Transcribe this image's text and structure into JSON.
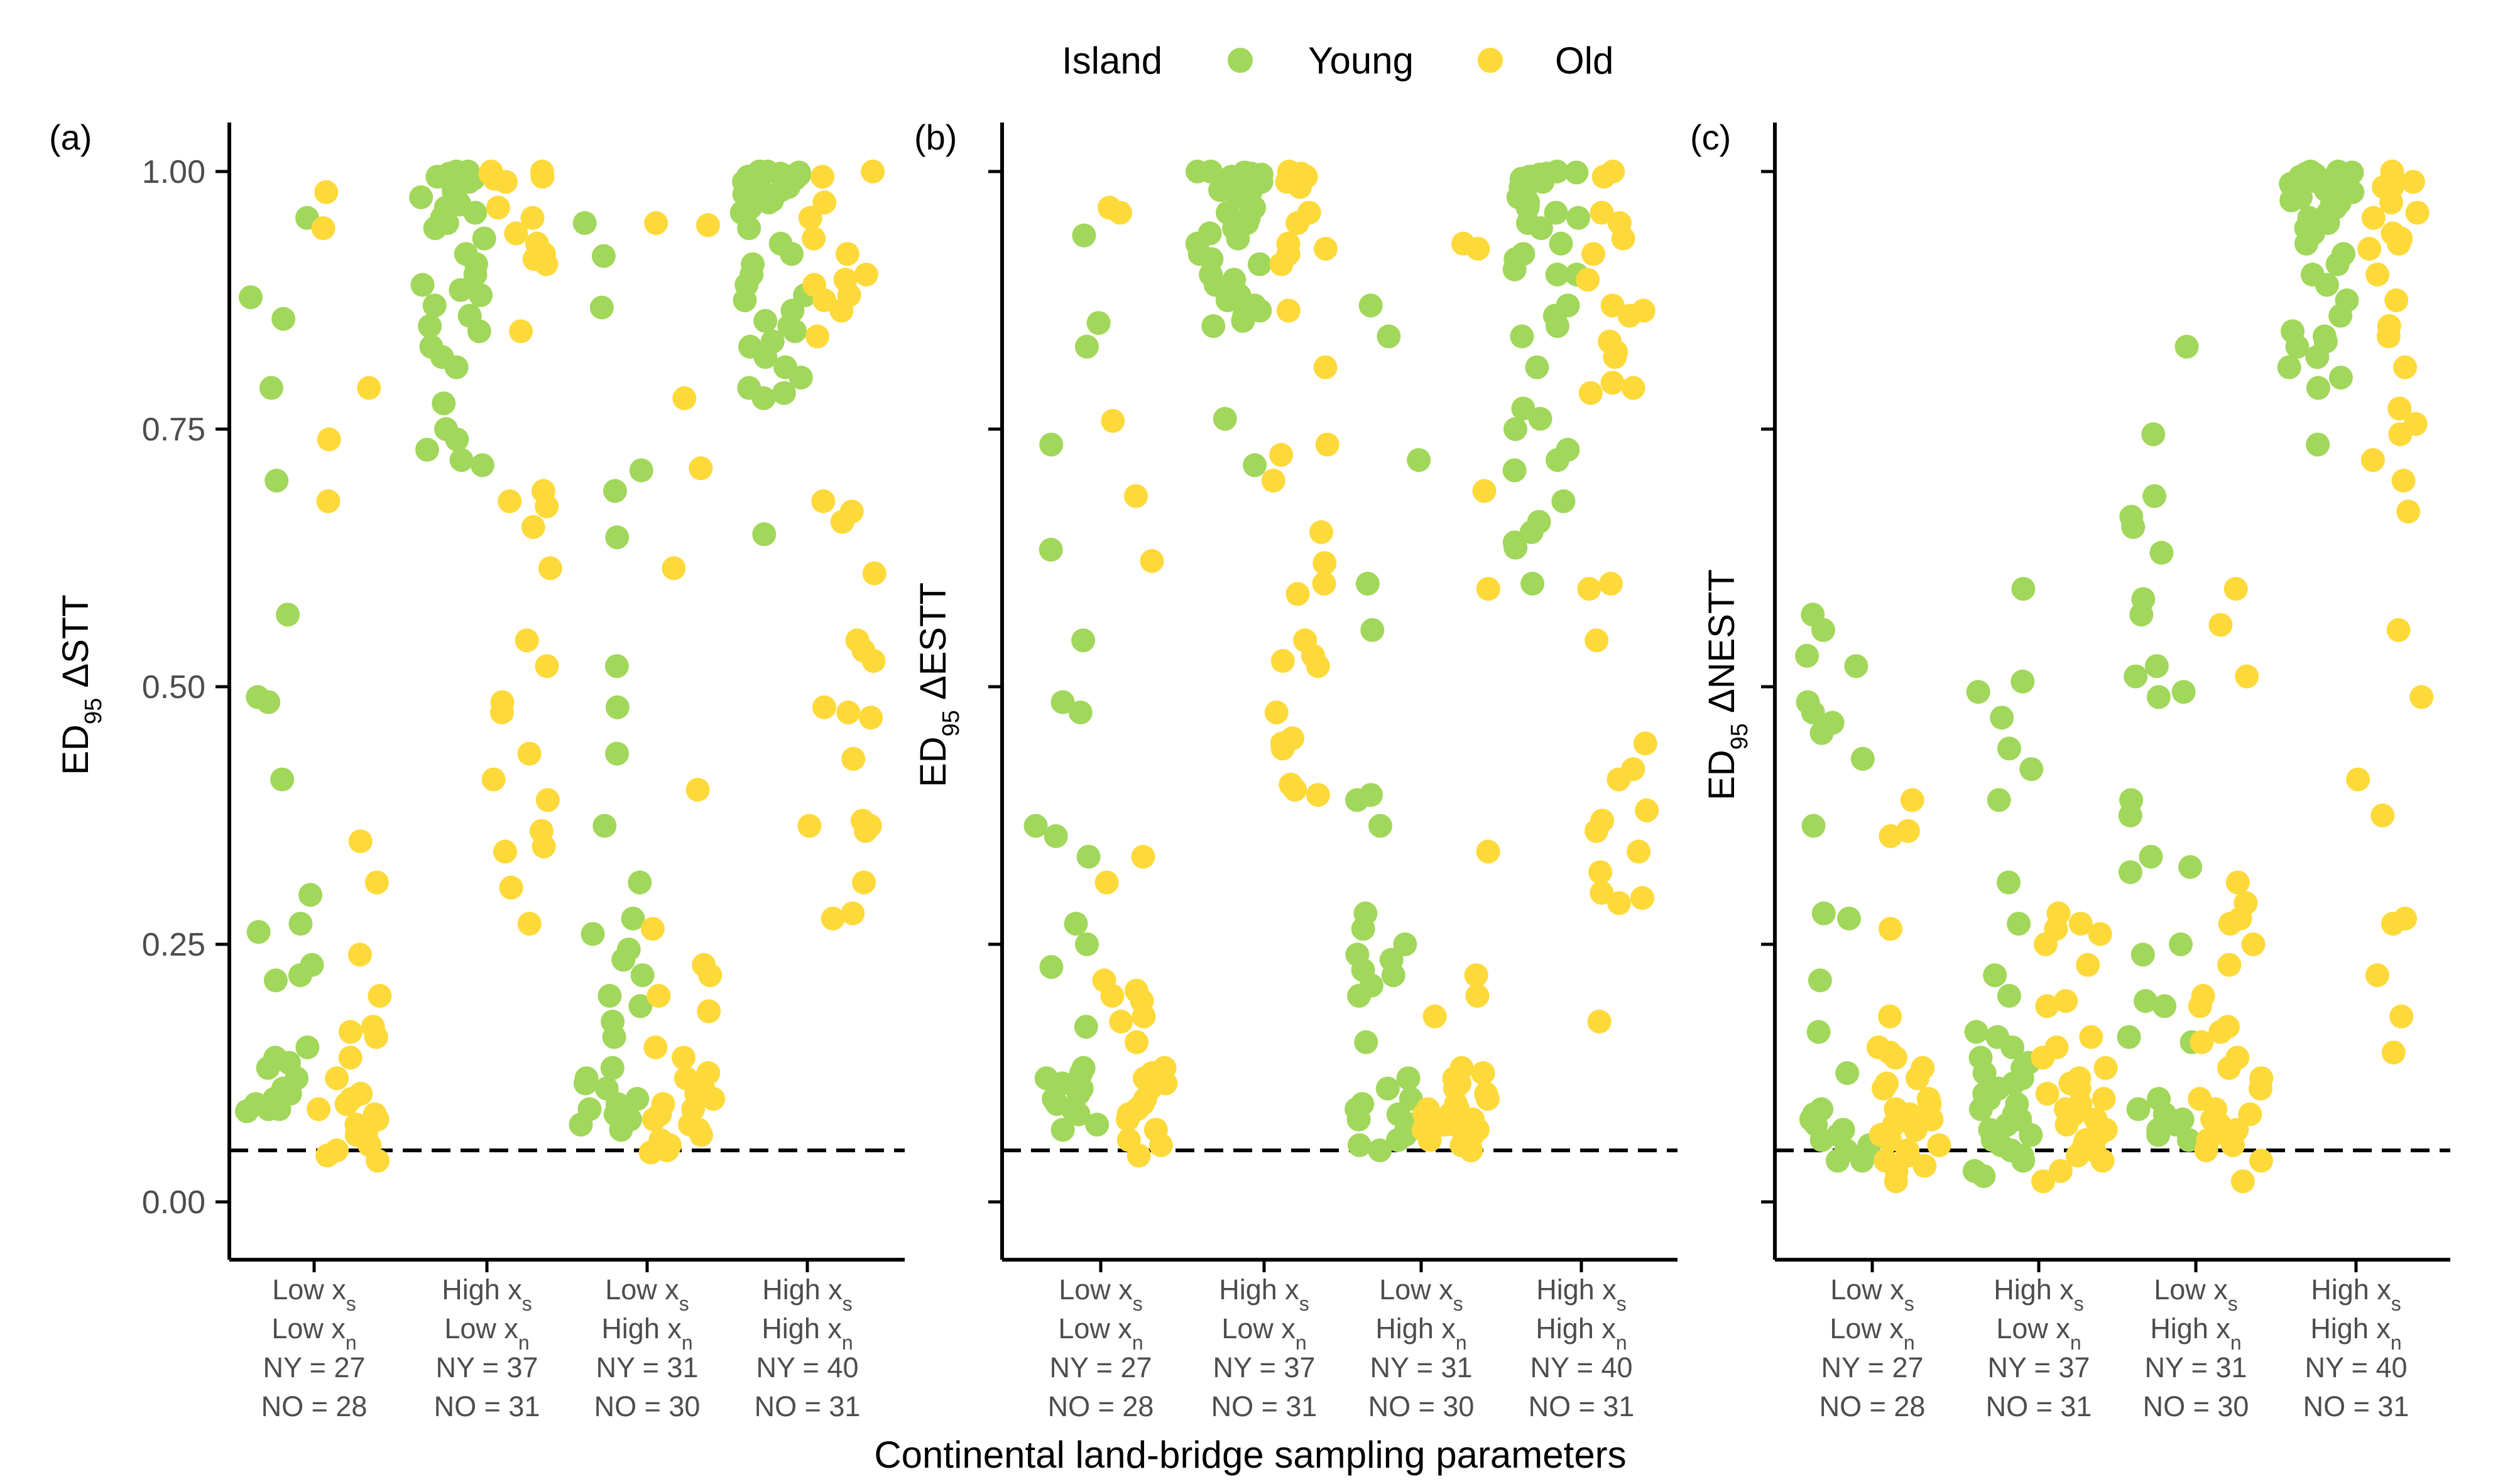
{
  "legend": {
    "title": "Island",
    "items": [
      {
        "label": "Young",
        "color": "#a1d75a"
      },
      {
        "label": "Old",
        "color": "#fed93a"
      }
    ]
  },
  "x_axis_title": "Continental land-bridge sampling parameters",
  "chart_data": [
    {
      "type": "scatter",
      "panel_label": "(a)",
      "ylabel": "ED95 ΔSTT",
      "ylim": [
        -0.05,
        1.05
      ],
      "yticks": [
        0.0,
        0.25,
        0.5,
        0.75,
        1.0
      ],
      "ytick_labels": [
        "0.00",
        "0.25",
        "0.50",
        "0.75",
        "1.00"
      ],
      "reference_line": 0.05,
      "categories": [
        {
          "lines": [
            "Low xs",
            "Low xn",
            "NY = 27",
            "NO = 28"
          ],
          "young": [
            0.955,
            0.878,
            0.857,
            0.79,
            0.7,
            0.57,
            0.49,
            0.485,
            0.41,
            0.298,
            0.27,
            0.262,
            0.23,
            0.22,
            0.215,
            0.15,
            0.14,
            0.135,
            0.13,
            0.12,
            0.11,
            0.105,
            0.1,
            0.095,
            0.09,
            0.09,
            0.088
          ],
          "old": [
            0.98,
            0.945,
            0.79,
            0.74,
            0.68,
            0.35,
            0.31,
            0.24,
            0.2,
            0.17,
            0.165,
            0.16,
            0.14,
            0.12,
            0.105,
            0.1,
            0.095,
            0.09,
            0.085,
            0.08,
            0.075,
            0.07,
            0.065,
            0.06,
            0.055,
            0.05,
            0.045,
            0.04
          ]
        },
        {
          "lines": [
            "High xs",
            "Low xn",
            "NY = 37",
            "NO = 31"
          ],
          "young": [
            1.0,
            1.0,
            0.998,
            0.995,
            0.993,
            0.99,
            0.988,
            0.985,
            0.98,
            0.975,
            0.97,
            0.968,
            0.965,
            0.96,
            0.955,
            0.95,
            0.945,
            0.935,
            0.92,
            0.91,
            0.9,
            0.89,
            0.885,
            0.88,
            0.87,
            0.86,
            0.85,
            0.845,
            0.83,
            0.82,
            0.81,
            0.775,
            0.75,
            0.74,
            0.73,
            0.72,
            0.715
          ],
          "old": [
            1.0,
            1.0,
            0.998,
            0.995,
            0.993,
            0.99,
            0.965,
            0.955,
            0.94,
            0.93,
            0.92,
            0.915,
            0.91,
            0.845,
            0.69,
            0.68,
            0.675,
            0.655,
            0.615,
            0.545,
            0.52,
            0.485,
            0.475,
            0.435,
            0.41,
            0.39,
            0.36,
            0.345,
            0.34,
            0.305,
            0.27
          ]
        },
        {
          "lines": [
            "Low xs",
            "High xn",
            "NY = 31",
            "NO = 30"
          ],
          "young": [
            0.95,
            0.918,
            0.868,
            0.71,
            0.69,
            0.645,
            0.52,
            0.48,
            0.435,
            0.365,
            0.31,
            0.275,
            0.26,
            0.245,
            0.235,
            0.22,
            0.2,
            0.19,
            0.175,
            0.16,
            0.13,
            0.12,
            0.115,
            0.11,
            0.1,
            0.095,
            0.09,
            0.085,
            0.08,
            0.075,
            0.07
          ],
          "old": [
            0.95,
            0.948,
            0.78,
            0.712,
            0.615,
            0.4,
            0.265,
            0.23,
            0.22,
            0.2,
            0.185,
            0.15,
            0.14,
            0.125,
            0.12,
            0.115,
            0.11,
            0.105,
            0.1,
            0.095,
            0.09,
            0.085,
            0.08,
            0.075,
            0.07,
            0.065,
            0.06,
            0.055,
            0.05,
            0.048
          ]
        },
        {
          "lines": [
            "High xs",
            "High xn",
            "NY = 40",
            "NO = 31"
          ],
          "young": [
            1.0,
            1.0,
            0.999,
            0.998,
            0.997,
            0.996,
            0.995,
            0.993,
            0.99,
            0.988,
            0.985,
            0.982,
            0.98,
            0.978,
            0.975,
            0.972,
            0.97,
            0.965,
            0.96,
            0.945,
            0.93,
            0.92,
            0.91,
            0.9,
            0.89,
            0.88,
            0.875,
            0.865,
            0.855,
            0.85,
            0.845,
            0.835,
            0.83,
            0.82,
            0.81,
            0.8,
            0.79,
            0.785,
            0.78,
            0.648
          ],
          "old": [
            1.0,
            0.995,
            0.97,
            0.955,
            0.935,
            0.92,
            0.9,
            0.895,
            0.89,
            0.88,
            0.875,
            0.865,
            0.84,
            0.68,
            0.67,
            0.66,
            0.61,
            0.545,
            0.535,
            0.525,
            0.48,
            0.475,
            0.47,
            0.43,
            0.37,
            0.365,
            0.365,
            0.36,
            0.31,
            0.28,
            0.275
          ]
        }
      ]
    },
    {
      "type": "scatter",
      "panel_label": "(b)",
      "ylabel": "ED95 ΔESTT",
      "ylim": [
        -0.05,
        1.05
      ],
      "yticks": [
        0.0,
        0.25,
        0.5,
        0.75,
        1.0
      ],
      "ytick_labels": [],
      "reference_line": 0.05,
      "categories": [
        {
          "lines": [
            "Low xs",
            "Low xn",
            "NY = 27",
            "NO = 28"
          ],
          "young": [
            0.938,
            0.853,
            0.83,
            0.735,
            0.633,
            0.545,
            0.485,
            0.475,
            0.365,
            0.355,
            0.335,
            0.27,
            0.25,
            0.228,
            0.17,
            0.13,
            0.125,
            0.12,
            0.115,
            0.11,
            0.105,
            0.1,
            0.095,
            0.09,
            0.085,
            0.075,
            0.07
          ],
          "old": [
            0.965,
            0.96,
            0.758,
            0.685,
            0.622,
            0.335,
            0.31,
            0.215,
            0.205,
            0.2,
            0.195,
            0.18,
            0.175,
            0.155,
            0.13,
            0.125,
            0.12,
            0.115,
            0.11,
            0.1,
            0.095,
            0.09,
            0.085,
            0.08,
            0.07,
            0.06,
            0.055,
            0.045
          ]
        },
        {
          "lines": [
            "High xs",
            "Low xn",
            "NY = 37",
            "NO = 31"
          ],
          "young": [
            1.0,
            1.0,
            0.999,
            0.998,
            0.997,
            0.995,
            0.993,
            0.99,
            0.988,
            0.985,
            0.982,
            0.98,
            0.975,
            0.97,
            0.965,
            0.96,
            0.955,
            0.95,
            0.945,
            0.94,
            0.935,
            0.93,
            0.92,
            0.915,
            0.91,
            0.9,
            0.895,
            0.89,
            0.88,
            0.875,
            0.87,
            0.865,
            0.86,
            0.855,
            0.85,
            0.76,
            0.715
          ],
          "old": [
            1.0,
            0.998,
            0.995,
            0.99,
            0.985,
            0.96,
            0.95,
            0.93,
            0.925,
            0.92,
            0.91,
            0.865,
            0.81,
            0.735,
            0.725,
            0.7,
            0.65,
            0.62,
            0.59,
            0.545,
            0.53,
            0.525,
            0.52,
            0.475,
            0.45,
            0.445,
            0.44,
            0.4,
            0.395,
            0.405,
            0.6
          ]
        },
        {
          "lines": [
            "Low xs",
            "High xn",
            "NY = 31",
            "NO = 30"
          ],
          "young": [
            0.87,
            0.84,
            0.72,
            0.6,
            0.555,
            0.395,
            0.39,
            0.365,
            0.28,
            0.265,
            0.25,
            0.24,
            0.235,
            0.225,
            0.22,
            0.21,
            0.2,
            0.155,
            0.12,
            0.11,
            0.1,
            0.095,
            0.09,
            0.085,
            0.08,
            0.075,
            0.07,
            0.065,
            0.06,
            0.055,
            0.05
          ],
          "old": [
            0.93,
            0.925,
            0.69,
            0.595,
            0.34,
            0.22,
            0.2,
            0.18,
            0.13,
            0.125,
            0.12,
            0.115,
            0.11,
            0.105,
            0.1,
            0.095,
            0.09,
            0.085,
            0.08,
            0.075,
            0.07,
            0.065,
            0.06,
            0.055,
            0.05,
            0.07,
            0.075,
            0.08,
            0.085,
            0.09
          ]
        },
        {
          "lines": [
            "High xs",
            "High xn",
            "NY = 40",
            "NO = 31"
          ],
          "young": [
            1.0,
            0.999,
            0.998,
            0.997,
            0.996,
            0.995,
            0.993,
            0.99,
            0.985,
            0.98,
            0.975,
            0.97,
            0.965,
            0.96,
            0.955,
            0.95,
            0.945,
            0.93,
            0.92,
            0.915,
            0.9,
            0.87,
            0.86,
            0.85,
            0.84,
            0.81,
            0.77,
            0.76,
            0.75,
            0.73,
            0.72,
            0.71,
            0.68,
            0.66,
            0.65,
            0.64,
            0.635,
            0.6,
            0.9,
            0.905
          ],
          "old": [
            1.0,
            0.995,
            0.96,
            0.95,
            0.935,
            0.92,
            0.895,
            0.87,
            0.865,
            0.86,
            0.835,
            0.825,
            0.82,
            0.795,
            0.79,
            0.785,
            0.6,
            0.595,
            0.545,
            0.445,
            0.42,
            0.41,
            0.38,
            0.37,
            0.36,
            0.34,
            0.32,
            0.3,
            0.295,
            0.29,
            0.175
          ]
        }
      ]
    },
    {
      "type": "scatter",
      "panel_label": "(c)",
      "ylabel": "ED95 ΔNESTT",
      "ylim": [
        -0.05,
        1.05
      ],
      "yticks": [
        0.0,
        0.25,
        0.5,
        0.75,
        1.0
      ],
      "ytick_labels": [],
      "reference_line": 0.05,
      "categories": [
        {
          "lines": [
            "Low xs",
            "Low xn",
            "NY = 27",
            "NO = 28"
          ],
          "young": [
            0.57,
            0.555,
            0.53,
            0.52,
            0.485,
            0.475,
            0.465,
            0.455,
            0.43,
            0.365,
            0.28,
            0.275,
            0.215,
            0.165,
            0.125,
            0.09,
            0.085,
            0.08,
            0.075,
            0.07,
            0.065,
            0.06,
            0.055,
            0.05,
            0.045,
            0.04,
            0.04
          ],
          "old": [
            0.39,
            0.36,
            0.355,
            0.265,
            0.18,
            0.15,
            0.145,
            0.14,
            0.13,
            0.12,
            0.115,
            0.11,
            0.1,
            0.095,
            0.09,
            0.085,
            0.08,
            0.075,
            0.07,
            0.065,
            0.06,
            0.055,
            0.05,
            0.045,
            0.04,
            0.035,
            0.03,
            0.02
          ]
        },
        {
          "lines": [
            "High xs",
            "Low xn",
            "NY = 37",
            "NO = 31"
          ],
          "young": [
            0.595,
            0.505,
            0.495,
            0.47,
            0.44,
            0.42,
            0.39,
            0.31,
            0.27,
            0.22,
            0.2,
            0.165,
            0.16,
            0.15,
            0.14,
            0.135,
            0.13,
            0.125,
            0.12,
            0.115,
            0.11,
            0.105,
            0.1,
            0.095,
            0.09,
            0.085,
            0.08,
            0.075,
            0.07,
            0.065,
            0.06,
            0.055,
            0.05,
            0.045,
            0.04,
            0.03,
            0.025
          ],
          "old": [
            0.28,
            0.27,
            0.265,
            0.26,
            0.25,
            0.23,
            0.195,
            0.19,
            0.16,
            0.15,
            0.14,
            0.13,
            0.12,
            0.115,
            0.11,
            0.105,
            0.1,
            0.095,
            0.09,
            0.085,
            0.08,
            0.075,
            0.07,
            0.065,
            0.06,
            0.055,
            0.05,
            0.045,
            0.04,
            0.03,
            0.02
          ]
        },
        {
          "lines": [
            "Low xs",
            "High xn",
            "NY = 31",
            "NO = 30"
          ],
          "young": [
            0.83,
            0.745,
            0.685,
            0.665,
            0.655,
            0.63,
            0.585,
            0.57,
            0.52,
            0.51,
            0.495,
            0.49,
            0.39,
            0.375,
            0.335,
            0.325,
            0.32,
            0.25,
            0.24,
            0.195,
            0.19,
            0.16,
            0.155,
            0.1,
            0.09,
            0.085,
            0.08,
            0.075,
            0.07,
            0.065,
            0.06
          ],
          "old": [
            0.595,
            0.56,
            0.51,
            0.31,
            0.29,
            0.275,
            0.27,
            0.25,
            0.23,
            0.2,
            0.19,
            0.17,
            0.165,
            0.155,
            0.14,
            0.13,
            0.12,
            0.11,
            0.1,
            0.09,
            0.085,
            0.08,
            0.075,
            0.07,
            0.065,
            0.06,
            0.055,
            0.05,
            0.04,
            0.02
          ]
        },
        {
          "lines": [
            "High xs",
            "High xn",
            "NY = 40",
            "NO = 31"
          ],
          "young": [
            1.0,
            1.0,
            0.999,
            0.998,
            0.997,
            0.996,
            0.995,
            0.993,
            0.99,
            0.988,
            0.985,
            0.982,
            0.98,
            0.978,
            0.975,
            0.972,
            0.97,
            0.965,
            0.96,
            0.955,
            0.95,
            0.945,
            0.94,
            0.93,
            0.92,
            0.91,
            0.9,
            0.89,
            0.875,
            0.86,
            0.845,
            0.84,
            0.835,
            0.83,
            0.82,
            0.81,
            0.8,
            0.79,
            0.735,
            0.97
          ],
          "old": [
            1.0,
            0.99,
            0.985,
            0.97,
            0.955,
            0.935,
            0.925,
            0.9,
            0.875,
            0.85,
            0.84,
            0.81,
            0.77,
            0.755,
            0.745,
            0.72,
            0.7,
            0.67,
            0.555,
            0.49,
            0.41,
            0.375,
            0.275,
            0.27,
            0.22,
            0.18,
            0.145,
            0.985,
            0.96,
            0.94,
            0.93
          ]
        }
      ]
    }
  ]
}
